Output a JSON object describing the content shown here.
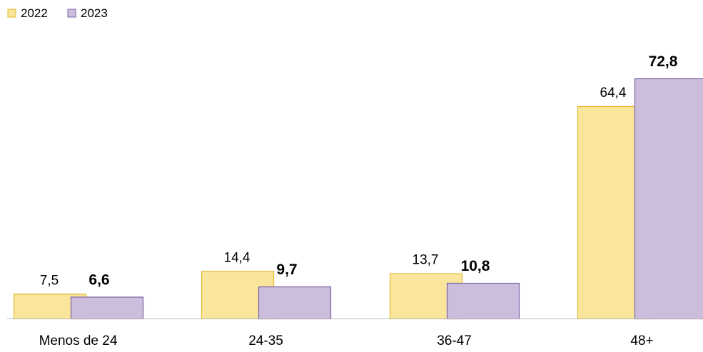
{
  "chart_data": {
    "type": "bar",
    "title": "",
    "xlabel": "",
    "ylabel": "",
    "categories": [
      "Menos de 24",
      "24-35",
      "36-47",
      "48+"
    ],
    "series": [
      {
        "name": "2022",
        "values": [
          7.5,
          14.4,
          13.7,
          64.4
        ],
        "labels": [
          "7,5",
          "14,4",
          "13,7",
          "64,4"
        ],
        "fill": "#f9e69c",
        "stroke": "#e2b92d",
        "label_bold": false
      },
      {
        "name": "2023",
        "values": [
          6.6,
          9.7,
          10.8,
          72.8
        ],
        "labels": [
          "6,6",
          "9,7",
          "10,8",
          "72,8"
        ],
        "fill": "#cbbddb",
        "stroke": "#7b62a3",
        "label_bold": true
      }
    ],
    "ylim": [
      0,
      80
    ],
    "grid": false,
    "legend_position": "top-left",
    "axis_line_color": "#bfbfbf"
  }
}
